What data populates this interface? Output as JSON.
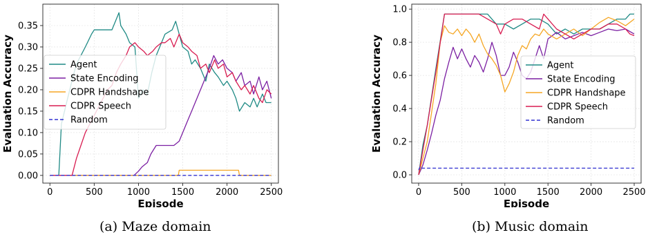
{
  "chart_data": [
    {
      "type": "line",
      "xlabel": "Episode",
      "ylabel": "Evaluation Accuracy",
      "xlim": [
        -80,
        2580
      ],
      "ylim": [
        -0.018,
        0.4
      ],
      "xticks": [
        0,
        500,
        1000,
        1500,
        2000,
        2500
      ],
      "xtick_labels": [
        "0",
        "500",
        "1000",
        "1500",
        "2000",
        "2500"
      ],
      "yticks": [
        0.0,
        0.05,
        0.1,
        0.15,
        0.2,
        0.25,
        0.3,
        0.35
      ],
      "ytick_labels": [
        "0.00",
        "0.05",
        "0.10",
        "0.15",
        "0.20",
        "0.25",
        "0.30",
        "0.35"
      ],
      "grid": true,
      "legend_position": "center-left",
      "series": [
        {
          "name": "Agent",
          "color": "#1f8a85",
          "dash": "",
          "x": [
            0,
            100,
            130,
            200,
            260,
            300,
            400,
            470,
            500,
            600,
            700,
            780,
            800,
            860,
            900,
            960,
            1000,
            1050,
            1100,
            1150,
            1200,
            1260,
            1300,
            1380,
            1420,
            1460,
            1500,
            1560,
            1600,
            1640,
            1700,
            1760,
            1800,
            1860,
            1900,
            1960,
            2000,
            2060,
            2100,
            2140,
            2200,
            2260,
            2300,
            2340,
            2400,
            2440,
            2500
          ],
          "y": [
            0.0,
            0.0,
            0.12,
            0.18,
            0.23,
            0.26,
            0.3,
            0.33,
            0.34,
            0.34,
            0.34,
            0.38,
            0.35,
            0.33,
            0.31,
            0.3,
            0.18,
            0.2,
            0.19,
            0.24,
            0.28,
            0.31,
            0.33,
            0.34,
            0.36,
            0.33,
            0.3,
            0.29,
            0.26,
            0.27,
            0.25,
            0.22,
            0.26,
            0.24,
            0.23,
            0.21,
            0.22,
            0.2,
            0.18,
            0.15,
            0.17,
            0.16,
            0.18,
            0.16,
            0.19,
            0.17,
            0.17
          ]
        },
        {
          "name": "State Encoding",
          "color": "#7b1fa2",
          "dash": "",
          "x": [
            0,
            950,
            1000,
            1040,
            1100,
            1140,
            1200,
            1300,
            1400,
            1460,
            1500,
            1560,
            1600,
            1660,
            1700,
            1760,
            1800,
            1850,
            1900,
            1950,
            2000,
            2060,
            2100,
            2160,
            2200,
            2260,
            2300,
            2360,
            2400,
            2450,
            2500
          ],
          "y": [
            0.0,
            0.0,
            0.01,
            0.02,
            0.03,
            0.05,
            0.07,
            0.07,
            0.07,
            0.08,
            0.1,
            0.13,
            0.15,
            0.18,
            0.2,
            0.23,
            0.25,
            0.28,
            0.26,
            0.27,
            0.25,
            0.24,
            0.22,
            0.24,
            0.21,
            0.22,
            0.19,
            0.23,
            0.2,
            0.22,
            0.18
          ]
        },
        {
          "name": "CDPR Handshape",
          "color": "#f5a623",
          "dash": "",
          "x": [
            0,
            1450,
            1460,
            2130,
            2140,
            2500
          ],
          "y": [
            0.0,
            0.0,
            0.012,
            0.012,
            0.0,
            0.0
          ]
        },
        {
          "name": "CDPR Speech",
          "color": "#d81b50",
          "dash": "",
          "x": [
            0,
            250,
            300,
            350,
            400,
            450,
            500,
            550,
            600,
            650,
            700,
            750,
            800,
            860,
            900,
            960,
            1000,
            1060,
            1100,
            1160,
            1200,
            1260,
            1300,
            1360,
            1400,
            1460,
            1500,
            1560,
            1600,
            1660,
            1700,
            1760,
            1800,
            1860,
            1900,
            1960,
            2000,
            2060,
            2100,
            2160,
            2200,
            2260,
            2300,
            2360,
            2400,
            2450,
            2500
          ],
          "y": [
            0.0,
            0.0,
            0.04,
            0.07,
            0.1,
            0.12,
            0.14,
            0.16,
            0.18,
            0.2,
            0.21,
            0.24,
            0.26,
            0.28,
            0.3,
            0.31,
            0.3,
            0.29,
            0.28,
            0.29,
            0.3,
            0.31,
            0.31,
            0.32,
            0.3,
            0.33,
            0.31,
            0.3,
            0.29,
            0.28,
            0.25,
            0.26,
            0.24,
            0.27,
            0.25,
            0.26,
            0.23,
            0.24,
            0.22,
            0.2,
            0.21,
            0.19,
            0.21,
            0.18,
            0.17,
            0.2,
            0.19
          ]
        },
        {
          "name": "Random",
          "color": "#3030d0",
          "dash": "5,3",
          "x": [
            0,
            2500
          ],
          "y": [
            0.0,
            0.0
          ]
        }
      ]
    },
    {
      "type": "line",
      "xlabel": "Episode",
      "ylabel": "Evaluation Accuracy",
      "xlim": [
        -80,
        2580
      ],
      "ylim": [
        -0.05,
        1.03
      ],
      "xticks": [
        0,
        500,
        1000,
        1500,
        2000,
        2500
      ],
      "xtick_labels": [
        "0",
        "500",
        "1000",
        "1500",
        "2000",
        "2500"
      ],
      "yticks": [
        0.0,
        0.2,
        0.4,
        0.6,
        0.8,
        1.0
      ],
      "ytick_labels": [
        "0.0",
        "0.2",
        "0.4",
        "0.6",
        "0.8",
        "1.0"
      ],
      "grid": true,
      "legend_position": "center-right",
      "series": [
        {
          "name": "Agent",
          "color": "#1f8a85",
          "dash": "",
          "x": [
            0,
            50,
            100,
            200,
            300,
            400,
            500,
            600,
            700,
            800,
            900,
            1000,
            1100,
            1200,
            1300,
            1400,
            1500,
            1600,
            1700,
            1800,
            1900,
            2000,
            2100,
            2200,
            2300,
            2400,
            2450,
            2500
          ],
          "y": [
            0.0,
            0.18,
            0.3,
            0.64,
            0.97,
            0.97,
            0.97,
            0.97,
            0.97,
            0.97,
            0.91,
            0.91,
            0.88,
            0.91,
            0.94,
            0.94,
            0.91,
            0.85,
            0.88,
            0.85,
            0.88,
            0.88,
            0.88,
            0.91,
            0.94,
            0.94,
            0.97,
            0.97
          ]
        },
        {
          "name": "State Encoding",
          "color": "#7b1fa2",
          "dash": "",
          "x": [
            0,
            50,
            100,
            150,
            200,
            250,
            300,
            350,
            400,
            450,
            500,
            550,
            600,
            650,
            700,
            750,
            800,
            850,
            900,
            950,
            1000,
            1050,
            1100,
            1150,
            1200,
            1250,
            1300,
            1350,
            1400,
            1450,
            1500,
            1600,
            1700,
            1800,
            1900,
            2000,
            2100,
            2200,
            2300,
            2400,
            2500
          ],
          "y": [
            0.0,
            0.06,
            0.15,
            0.25,
            0.36,
            0.45,
            0.58,
            0.68,
            0.77,
            0.7,
            0.76,
            0.7,
            0.65,
            0.72,
            0.68,
            0.62,
            0.7,
            0.8,
            0.72,
            0.6,
            0.6,
            0.65,
            0.74,
            0.68,
            0.6,
            0.58,
            0.62,
            0.7,
            0.78,
            0.7,
            0.82,
            0.86,
            0.82,
            0.84,
            0.86,
            0.84,
            0.86,
            0.88,
            0.87,
            0.88,
            0.85
          ]
        },
        {
          "name": "CDPR Handshape",
          "color": "#f5a623",
          "dash": "",
          "x": [
            0,
            50,
            100,
            200,
            250,
            300,
            350,
            400,
            450,
            500,
            550,
            600,
            650,
            700,
            750,
            800,
            850,
            900,
            950,
            1000,
            1050,
            1100,
            1150,
            1200,
            1250,
            1300,
            1350,
            1400,
            1450,
            1500,
            1600,
            1700,
            1800,
            1900,
            2000,
            2100,
            2200,
            2300,
            2400,
            2500
          ],
          "y": [
            0.0,
            0.1,
            0.2,
            0.55,
            0.8,
            0.9,
            0.86,
            0.85,
            0.88,
            0.84,
            0.88,
            0.85,
            0.8,
            0.85,
            0.78,
            0.73,
            0.7,
            0.66,
            0.6,
            0.5,
            0.55,
            0.62,
            0.72,
            0.78,
            0.76,
            0.82,
            0.85,
            0.84,
            0.88,
            0.85,
            0.82,
            0.85,
            0.88,
            0.84,
            0.88,
            0.92,
            0.95,
            0.93,
            0.9,
            0.94
          ]
        },
        {
          "name": "CDPR Speech",
          "color": "#d81b50",
          "dash": "",
          "x": [
            0,
            50,
            100,
            200,
            300,
            400,
            500,
            600,
            700,
            800,
            900,
            950,
            1000,
            1100,
            1200,
            1300,
            1400,
            1450,
            1500,
            1600,
            1700,
            1800,
            1900,
            2000,
            2100,
            2200,
            2300,
            2400,
            2450,
            2500
          ],
          "y": [
            0.0,
            0.15,
            0.3,
            0.62,
            0.97,
            0.97,
            0.97,
            0.97,
            0.97,
            0.94,
            0.91,
            0.85,
            0.91,
            0.94,
            0.94,
            0.91,
            0.88,
            0.97,
            0.94,
            0.88,
            0.85,
            0.82,
            0.85,
            0.88,
            0.88,
            0.91,
            0.91,
            0.88,
            0.85,
            0.84
          ]
        },
        {
          "name": "Random",
          "color": "#3030d0",
          "dash": "5,3",
          "x": [
            0,
            20,
            40,
            2500
          ],
          "y": [
            0.03,
            0.05,
            0.04,
            0.04
          ]
        }
      ]
    }
  ],
  "captions": [
    "(a) Maze domain",
    "(b) Music domain"
  ]
}
